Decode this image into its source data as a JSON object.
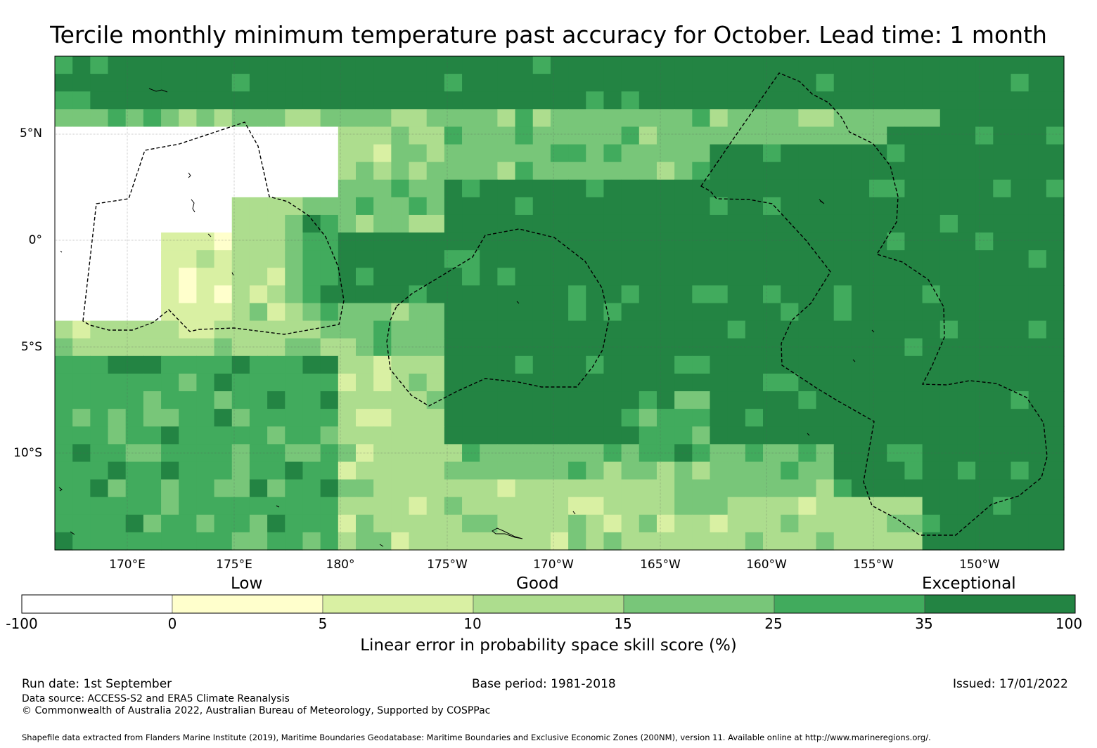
{
  "title": "Tercile monthly minimum temperature past accuracy for October. Lead time: 1 month",
  "axes": {
    "lat_labels": [
      "5°N",
      "0°",
      "5°S",
      "10°S"
    ],
    "lon_labels": [
      "170°E",
      "175°E",
      "180°",
      "175°W",
      "170°W",
      "165°W",
      "160°W",
      "155°W",
      "150°W"
    ]
  },
  "legend": {
    "categories": [
      "Low",
      "Good",
      "Exceptional"
    ],
    "ticks": [
      "-100",
      "0",
      "5",
      "10",
      "15",
      "25",
      "35",
      "100"
    ],
    "colors": [
      "#ffffff",
      "#ffffcc",
      "#d9f0a3",
      "#addd8e",
      "#78c679",
      "#41ab5d",
      "#238443"
    ],
    "title": "Linear error in probability space skill score (%)"
  },
  "footer": {
    "run_date": "Run date: 1st September",
    "base_period": "Base period: 1981-2018",
    "issued": "Issued: 17/01/2022",
    "data_source": "Data source: ACCESS-S2 and ERA5 Climate Reanalysis",
    "copyright": "© Commonwealth of Australia 2022, Australian Bureau of Meteorology, Supported by COSPPac",
    "shapefile": "Shapefile data extracted from Flanders Marine Institute (2019), Maritime Boundaries Geodatabase: Maritime Boundaries and Exclusive Economic Zones (200NM), version 11. Available online at http://www.marineregions.org/."
  }
}
